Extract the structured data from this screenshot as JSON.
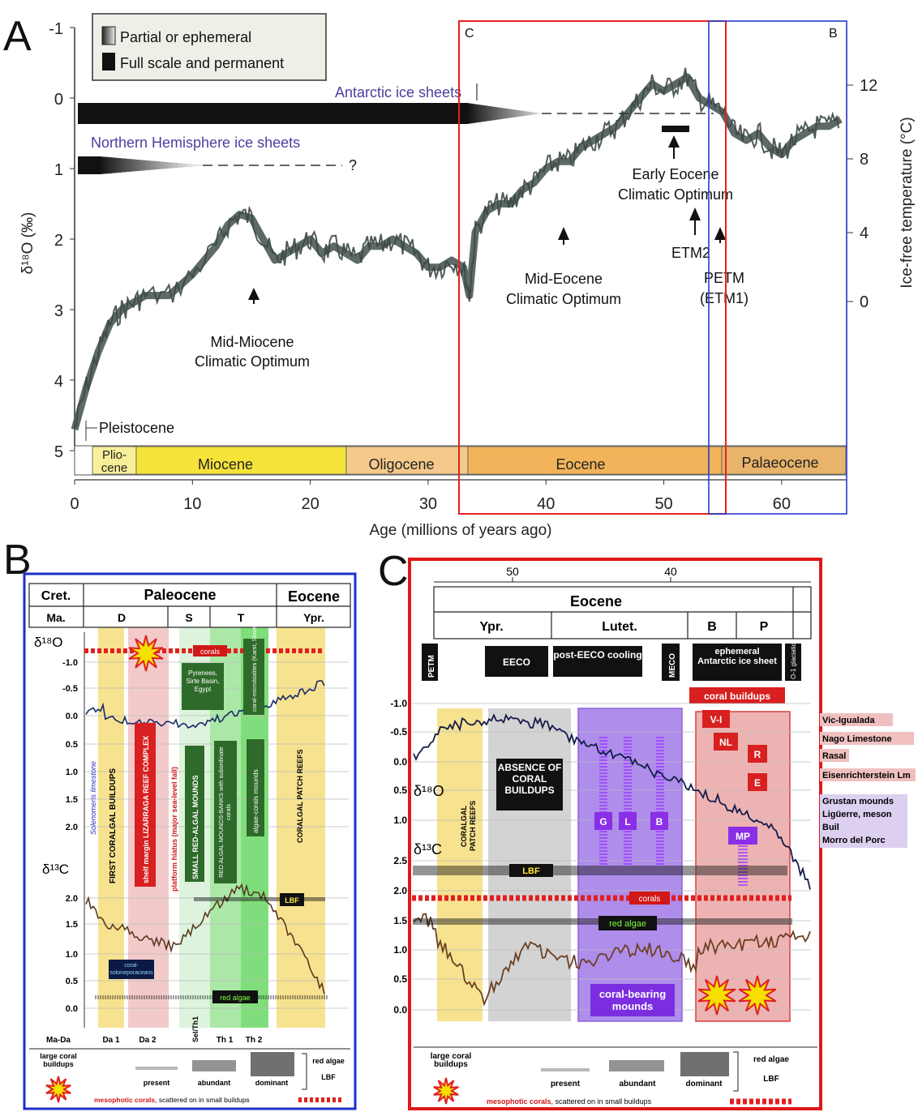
{
  "panel_labels": {
    "a": "A",
    "b": "B",
    "c": "C"
  },
  "panel_a": {
    "legend": {
      "partial": "Partial or ephemeral",
      "full": "Full scale and permanent"
    },
    "antarctic_label": "Antarctic ice sheets",
    "nh_label": "Northern Hemisphere ice sheets",
    "nh_question": "?",
    "box_c_label": "C",
    "box_b_label": "B",
    "y_label": "δ¹⁸O (‰)",
    "y_ticks": [
      "-1",
      "0",
      "1",
      "2",
      "3",
      "4",
      "5"
    ],
    "right_label": "Ice-free temperature (°C)",
    "right_ticks": [
      "12",
      "8",
      "4",
      "0"
    ],
    "x_label": "Age (millions of years ago)",
    "x_ticks": [
      "0",
      "10",
      "20",
      "30",
      "40",
      "50",
      "60"
    ],
    "epochs": [
      "Plio-cene",
      "Miocene",
      "Oligocene",
      "Eocene",
      "Palaeocene"
    ],
    "plio_1": "Plio-",
    "plio_2": "cene",
    "pleistocene": "Pleistocene",
    "ann_miocene_1": "Mid-Miocene",
    "ann_miocene_2": "Climatic Optimum",
    "ann_meco_1": "Mid-Eocene",
    "ann_meco_2": "Climatic Optimum",
    "ann_eeco_1": "Early Eocene",
    "ann_eeco_2": "Climatic Optimum",
    "ann_etm2": "ETM2",
    "ann_petm_1": "PETM",
    "ann_petm_2": "(ETM1)",
    "colors": {
      "miocene": "#f6e33a",
      "oligocene": "#f5c98c",
      "eocene": "#f2b45a",
      "palaeocene": "#e8b36a",
      "pliocene": "#f8ef9a",
      "box_c": "#e8211f",
      "box_b": "#2b3bd0",
      "curve": "#4b5a57"
    }
  },
  "chart_data": {
    "type": "scatter",
    "x_label": "Age (millions of years ago)",
    "y_label": "δ18O (‰)",
    "xlim": [
      0,
      66
    ],
    "ylim": [
      5,
      -1
    ],
    "series": [
      {
        "x": [
          0,
          1,
          2,
          3,
          4,
          5,
          6,
          8,
          10,
          12,
          13,
          14,
          15,
          16,
          17,
          18,
          19,
          20,
          21,
          22,
          23,
          24,
          25,
          26,
          27,
          28,
          29,
          30,
          31,
          32,
          33,
          33.5,
          34,
          35,
          36,
          37,
          38,
          39,
          40,
          41,
          42,
          43,
          44,
          45,
          46,
          47,
          48,
          49,
          50,
          51,
          52,
          53,
          54,
          55,
          56,
          57,
          58,
          59,
          60,
          61,
          62,
          63,
          64,
          65
        ],
        "y": [
          4.7,
          4.1,
          3.6,
          3.2,
          3.0,
          2.9,
          2.8,
          2.8,
          2.5,
          2.1,
          1.8,
          1.65,
          1.7,
          2.0,
          2.3,
          2.2,
          2.1,
          2.0,
          2.2,
          2.1,
          2.2,
          2.3,
          2.1,
          2.1,
          2.0,
          2.1,
          2.2,
          2.4,
          2.4,
          2.3,
          2.4,
          2.8,
          1.9,
          1.6,
          1.5,
          1.5,
          1.3,
          1.2,
          1.0,
          0.9,
          0.9,
          0.7,
          0.6,
          0.5,
          0.4,
          0.2,
          0.0,
          -0.2,
          -0.1,
          -0.2,
          -0.3,
          0.0,
          0.1,
          0.2,
          0.5,
          0.6,
          0.5,
          0.7,
          0.8,
          0.6,
          0.5,
          0.4,
          0.4,
          0.3
        ]
      }
    ]
  },
  "panel_b": {
    "h_cret": "Cret.",
    "h_paleocene": "Paleocene",
    "h_eocene": "Eocene",
    "h_ma": "Ma.",
    "h_d": "D",
    "h_s": "S",
    "h_t": "T",
    "h_ypr": "Ypr.",
    "d18o_label": "δ¹⁸O",
    "d13c_label": "δ¹³C",
    "d18o_ticks": [
      "-1.0",
      "-0.5",
      "0.0",
      "0.5",
      "1.0",
      "1.5",
      "2.0"
    ],
    "d13c_ticks": [
      "2.0",
      "1.5",
      "1.0",
      "0.5",
      "0.0"
    ],
    "corals": "corals",
    "pyrenees": "Pyrenees, Sirte Basin, Egypt",
    "coral_microbialites": "coral-microbialites (Karst, Slovenia)",
    "solenomeris": "Solenomeris limestone",
    "first_coralgal": "FIRST CORALGAL BUILDUPS",
    "lizarraga": "shelf margin LIZARRAGA REEF COMPLEX",
    "hiatus": "platform hiatus (major sea-level fall)",
    "small_red": "SMALL RED-ALGAL MOUNDS",
    "red_algal_banks": "RED ALGAL MOUNDS-BANKS with subordinate corals",
    "algae_coral": "algae-corals mounds",
    "coralgal_patch": "CORALGAL PATCH REEFS",
    "lbf": "LBF",
    "red_algae": "red algae",
    "coral_solenopora": "coral-soloneporaceans",
    "bottom": [
      "Ma-Da",
      "Da 1",
      "Da 2",
      "Sel/Th1",
      "Th 1",
      "Th 2"
    ],
    "legend_large": "large coral buildups",
    "legend_present": "present",
    "legend_abundant": "abundant",
    "legend_dominant": "dominant",
    "legend_red": "red algae",
    "legend_lbf": "LBF",
    "legend_meso_bold": "mesophotic corals",
    "legend_meso_rest": ", scattered on in small buildups"
  },
  "panel_c": {
    "ticks": [
      "50",
      "40"
    ],
    "h_eocene": "Eocene",
    "h_ypr": "Ypr.",
    "h_lutet": "Lutet.",
    "h_b": "B",
    "h_p": "P",
    "petm": "PETM",
    "eeco": "EECO",
    "post_eeco": "post-EECO cooling",
    "meco": "MECO",
    "ephemeral": "ephemeral Antarctic ice sheet",
    "glaciation": "O-1 glaciation",
    "coral_buildups": "coral buildups",
    "d18o_label": "δ¹⁸O",
    "d13c_label": "δ¹³C",
    "d18o_ticks": [
      "-1.0",
      "-0.5",
      "0.0",
      "0.5",
      "1.0"
    ],
    "d13c_ticks": [
      "2.5",
      "2.0",
      "1.5",
      "1.0",
      "0.5",
      "0.0"
    ],
    "coralgal_patch": "CORALGAL PATCH REEFS",
    "absence": "ABSENCE OF CORAL BUILDUPS",
    "lbf": "LBF",
    "corals": "corals",
    "red_algae": "red algae",
    "coral_bearing": "coral-bearing mounds",
    "boxes": [
      "G",
      "L",
      "B",
      "V-I",
      "NL",
      "R",
      "E",
      "MP"
    ],
    "loc_vic": "Vic-Igualada",
    "loc_nago": "Nago Limestone",
    "loc_rasal": "Rasal",
    "loc_eisen": "Eisenrichterstein Lm",
    "loc_grustan": "Grustan mounds",
    "loc_liguerre": "Ligüerre, meson",
    "loc_buil": "Buil",
    "loc_morro": "Morro del Porc",
    "legend_large": "large coral buildups",
    "legend_present": "present",
    "legend_abundant": "abundant",
    "legend_dominant": "dominant",
    "legend_red": "red algae",
    "legend_lbf": "LBF",
    "legend_meso_bold": "mesophotic corals",
    "legend_meso_rest": ", scattered on in small buildups"
  }
}
